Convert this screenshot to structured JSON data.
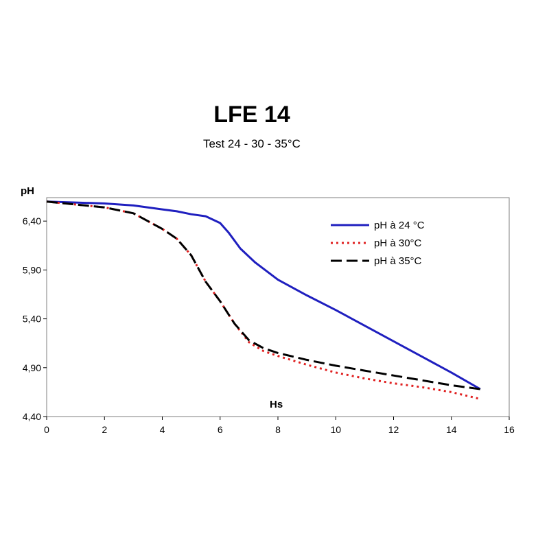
{
  "chart_data": {
    "type": "line",
    "title": "LFE 14",
    "subtitle": "Test 24 - 30 - 35°C",
    "xlabel": "Hs",
    "ylabel": "pH",
    "xlim": [
      0,
      16
    ],
    "ylim": [
      4.4,
      6.4
    ],
    "ymax_plot": 6.64,
    "xticks": [
      0,
      2,
      4,
      6,
      8,
      10,
      12,
      14,
      16
    ],
    "xtick_labels": [
      "0",
      "2",
      "4",
      "6",
      "8",
      "10",
      "12",
      "14",
      "16"
    ],
    "yticks": [
      4.4,
      4.9,
      5.4,
      5.9,
      6.4
    ],
    "ytick_labels": [
      "4,40",
      "4,90",
      "5,40",
      "5,90",
      "6,40"
    ],
    "grid": false,
    "legend_position": "top-right",
    "series": [
      {
        "name": "pH à 24 °C",
        "color": "#1f1fbf",
        "style": "solid",
        "x": [
          0,
          1,
          2,
          3,
          4,
          4.5,
          5,
          5.5,
          6,
          6.3,
          6.7,
          7.2,
          8,
          9,
          10,
          11,
          12,
          13,
          14,
          15
        ],
        "y": [
          6.6,
          6.59,
          6.58,
          6.56,
          6.52,
          6.5,
          6.47,
          6.45,
          6.38,
          6.28,
          6.12,
          5.98,
          5.8,
          5.64,
          5.49,
          5.33,
          5.17,
          5.01,
          4.85,
          4.68
        ]
      },
      {
        "name": "pH à 30°C",
        "color": "#e02020",
        "style": "dotted",
        "x": [
          0,
          1,
          2,
          3,
          4,
          4.5,
          5,
          5.5,
          6,
          6.5,
          7,
          7.5,
          8,
          9,
          10,
          11,
          12,
          13,
          14,
          15
        ],
        "y": [
          6.6,
          6.57,
          6.54,
          6.48,
          6.32,
          6.22,
          6.05,
          5.78,
          5.58,
          5.35,
          5.16,
          5.07,
          5.02,
          4.93,
          4.85,
          4.79,
          4.74,
          4.7,
          4.65,
          4.58
        ]
      },
      {
        "name": "pH à 35°C",
        "color": "#000000",
        "style": "dashed",
        "x": [
          0,
          1,
          2,
          3,
          4,
          4.5,
          5,
          5.5,
          6,
          6.5,
          7,
          7.5,
          8,
          9,
          10,
          11,
          12,
          13,
          14,
          15
        ],
        "y": [
          6.6,
          6.57,
          6.54,
          6.48,
          6.32,
          6.22,
          6.05,
          5.78,
          5.58,
          5.35,
          5.18,
          5.1,
          5.05,
          4.98,
          4.92,
          4.87,
          4.82,
          4.77,
          4.72,
          4.68
        ]
      }
    ]
  }
}
